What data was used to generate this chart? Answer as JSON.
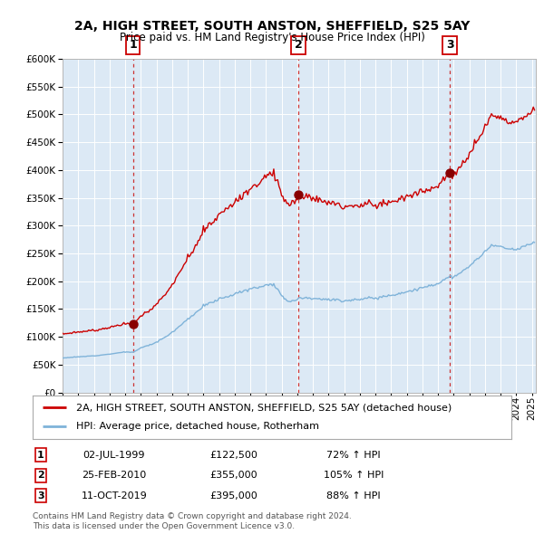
{
  "title1": "2A, HIGH STREET, SOUTH ANSTON, SHEFFIELD, S25 5AY",
  "title2": "Price paid vs. HM Land Registry's House Price Index (HPI)",
  "legend_property": "2A, HIGH STREET, SOUTH ANSTON, SHEFFIELD, S25 5AY (detached house)",
  "legend_hpi": "HPI: Average price, detached house, Rotherham",
  "sale1_date": "02-JUL-1999",
  "sale1_price": "£122,500",
  "sale1_hpi": "72% ↑ HPI",
  "sale2_date": "25-FEB-2010",
  "sale2_price": "£355,000",
  "sale2_hpi": "105% ↑ HPI",
  "sale3_date": "11-OCT-2019",
  "sale3_price": "£395,000",
  "sale3_hpi": "88% ↑ HPI",
  "footnote1": "Contains HM Land Registry data © Crown copyright and database right 2024.",
  "footnote2": "This data is licensed under the Open Government Licence v3.0.",
  "property_color": "#cc0000",
  "hpi_color": "#7fb3d9",
  "background_color": "#dce9f5",
  "sale_marker_color": "#880000",
  "vline_color": "#cc3333",
  "ylim": [
    0,
    600000
  ],
  "yticks": [
    0,
    50000,
    100000,
    150000,
    200000,
    250000,
    300000,
    350000,
    400000,
    450000,
    500000,
    550000,
    600000
  ]
}
